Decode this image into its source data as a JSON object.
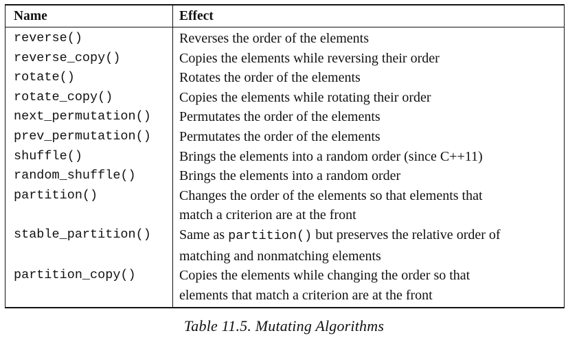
{
  "table": {
    "headers": {
      "name": "Name",
      "effect": "Effect"
    },
    "rows": [
      {
        "name": "reverse()",
        "effect": [
          "Reverses the order of the elements"
        ]
      },
      {
        "name": "reverse_copy()",
        "effect": [
          "Copies the elements while reversing their order"
        ]
      },
      {
        "name": "rotate()",
        "effect": [
          "Rotates the order of the elements"
        ]
      },
      {
        "name": "rotate_copy()",
        "effect": [
          "Copies the elements while rotating their order"
        ]
      },
      {
        "name": "next_permutation()",
        "effect": [
          "Permutates the order of the elements"
        ]
      },
      {
        "name": "prev_permutation()",
        "effect": [
          "Permutates the order of the elements"
        ]
      },
      {
        "name": "shuffle()",
        "effect": [
          "Brings the elements into a random order (since C++11)"
        ]
      },
      {
        "name": "random_shuffle()",
        "effect": [
          "Brings the elements into a random order"
        ]
      },
      {
        "name": "partition()",
        "effect": [
          "Changes the order of the elements so that elements that",
          "match a criterion are at the front"
        ]
      },
      {
        "name": "stable_partition()",
        "effect_parts": {
          "before": "Same as ",
          "code": "partition()",
          "after": " but preserves the relative order of"
        },
        "effect": [
          "",
          "matching and nonmatching elements"
        ]
      },
      {
        "name": "partition_copy()",
        "effect": [
          "Copies the elements while changing the order so that",
          "elements that match a criterion are at the front"
        ]
      }
    ]
  },
  "caption": "Table 11.5. Mutating Algorithms"
}
